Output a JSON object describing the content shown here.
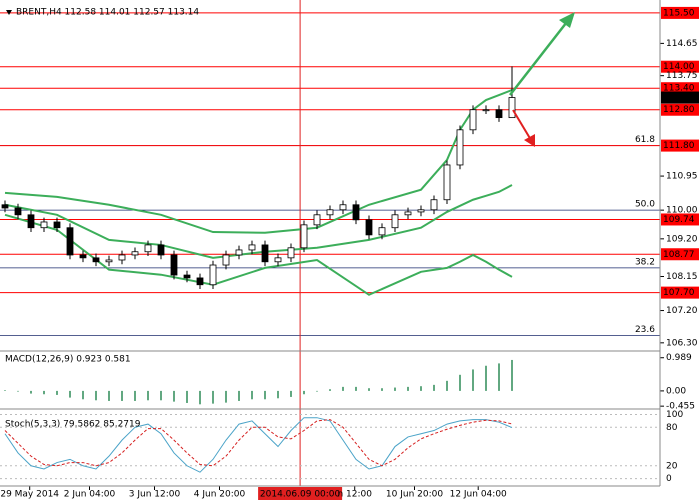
{
  "chart_data": [
    {
      "type": "candlestick",
      "title": "BRENT,H4  112.58 114.01 112.57 113.14",
      "open": [
        110.15,
        110.06,
        109.87,
        109.51,
        109.67,
        109.51,
        108.75,
        108.67,
        108.56,
        108.61,
        108.75,
        108.84,
        109.03,
        108.75,
        108.19,
        108.11,
        107.92,
        108.47,
        108.75,
        108.89,
        109.03,
        108.56,
        108.67,
        108.95,
        109.59,
        109.87,
        110.01,
        110.15,
        109.73,
        109.31,
        109.51,
        109.87,
        109.95,
        110.01,
        110.29,
        111.26,
        112.24,
        112.8,
        112.8,
        112.58
      ],
      "high": [
        110.27,
        110.18,
        109.99,
        109.79,
        109.79,
        109.63,
        108.87,
        108.79,
        108.73,
        108.87,
        108.96,
        109.15,
        109.15,
        108.87,
        108.31,
        108.23,
        108.59,
        108.87,
        109.01,
        109.15,
        109.15,
        108.79,
        109.07,
        109.71,
        109.99,
        110.13,
        110.27,
        110.27,
        109.85,
        109.63,
        109.99,
        110.07,
        110.13,
        110.41,
        111.38,
        112.36,
        112.92,
        112.92,
        112.92,
        114.01
      ],
      "low": [
        109.94,
        109.75,
        109.39,
        109.39,
        109.39,
        108.63,
        108.55,
        108.44,
        108.44,
        108.49,
        108.63,
        108.72,
        108.63,
        108.07,
        107.99,
        107.8,
        107.8,
        108.35,
        108.63,
        108.77,
        108.44,
        108.44,
        108.55,
        108.83,
        109.47,
        109.75,
        109.89,
        109.61,
        109.19,
        109.19,
        109.39,
        109.75,
        109.83,
        109.89,
        110.17,
        111.14,
        112.12,
        112.68,
        112.46,
        112.57
      ],
      "close": [
        110.06,
        109.87,
        109.51,
        109.67,
        109.51,
        108.75,
        108.67,
        108.56,
        108.61,
        108.75,
        108.84,
        109.03,
        108.75,
        108.19,
        108.11,
        107.92,
        108.47,
        108.75,
        108.89,
        109.03,
        108.56,
        108.67,
        108.95,
        109.59,
        109.87,
        110.01,
        110.15,
        109.73,
        109.31,
        109.51,
        109.87,
        109.95,
        110.01,
        110.29,
        111.26,
        112.24,
        112.8,
        112.8,
        112.58,
        113.14
      ],
      "bands": {
        "color": "#3cae5a",
        "x": [
          0,
          4,
          8,
          12,
          16,
          20,
          24,
          28,
          32,
          34,
          35,
          36,
          37,
          38,
          39
        ],
        "series": [
          {
            "values": [
              110.48,
              110.37,
              110.15,
              109.87,
              109.39,
              109.37,
              109.51,
              110.15,
              110.57,
              111.4,
              112.24,
              112.8,
              113.07,
              113.21,
              113.35
            ]
          },
          {
            "values": [
              110.15,
              109.87,
              109.17,
              109.03,
              108.67,
              108.84,
              108.95,
              109.17,
              109.51,
              109.95,
              110.12,
              110.29,
              110.4,
              110.51,
              110.7
            ]
          },
          {
            "values": [
              109.87,
              109.45,
              108.34,
              108.2,
              107.92,
              108.39,
              108.61,
              107.64,
              108.28,
              108.39,
              108.56,
              108.75,
              108.56,
              108.34,
              108.14
            ]
          }
        ]
      },
      "ylim": [
        106.1,
        115.86
      ],
      "yticks": [
        {
          "value": 114.65,
          "label": "114.65"
        },
        {
          "value": 113.75,
          "label": "113.75"
        },
        {
          "value": 110.95,
          "label": "110.95"
        },
        {
          "value": 110,
          "label": "110.00"
        },
        {
          "value": 109.2,
          "label": "109.20"
        },
        {
          "value": 108.15,
          "label": "108.15"
        },
        {
          "value": 107.2,
          "label": "107.20"
        },
        {
          "value": 106.3,
          "label": "106.30"
        }
      ],
      "levels": {
        "color": "#ff0000",
        "ticks": [
          {
            "value": 115.5,
            "label": "115.50"
          },
          {
            "value": 114,
            "label": "114.00"
          },
          {
            "value": 113.4,
            "label": "113.40"
          },
          {
            "value": 112.8,
            "label": "112.80"
          },
          {
            "value": 111.8,
            "label": "111.80"
          },
          {
            "value": 109.74,
            "label": "109.74"
          },
          {
            "value": 108.77,
            "label": "108.77"
          },
          {
            "value": 107.7,
            "label": "107.70"
          }
        ]
      },
      "last": {
        "value": 113.14,
        "label": "113.14"
      },
      "fib": {
        "color": "#1a2a6c",
        "ticks": [
          {
            "value": 111.8,
            "label": "61.8"
          },
          {
            "value": 110,
            "label": "50.0"
          },
          {
            "value": 108.39,
            "label": "38.2"
          },
          {
            "value": 106.5,
            "label": "23.6"
          }
        ]
      },
      "xticks": [
        {
          "value": 1.9,
          "label": "29 May 2014"
        },
        {
          "value": 6.5,
          "label": "2 Jun 04:00"
        },
        {
          "value": 11.5,
          "label": "3 Jun 12:00"
        },
        {
          "value": 16.5,
          "label": "4 Jun 20:00"
        },
        {
          "value": 26.9,
          "label": "n 12:00"
        },
        {
          "value": 31.5,
          "label": "10 Jun 20:00"
        },
        {
          "value": 36.4,
          "label": "12 Jun 04:00"
        }
      ],
      "cursor": {
        "value": 22.7,
        "label": "2014.06.09 00:00"
      }
    },
    {
      "type": "bar",
      "title": "MACD(12,26,9) 0.923 0.581",
      "color": "#2e8b57",
      "values": [
        0.02,
        -0.02,
        -0.08,
        -0.1,
        -0.12,
        -0.2,
        -0.25,
        -0.28,
        -0.3,
        -0.3,
        -0.3,
        -0.28,
        -0.28,
        -0.32,
        -0.36,
        -0.4,
        -0.38,
        -0.35,
        -0.3,
        -0.25,
        -0.25,
        -0.22,
        -0.18,
        -0.1,
        -0.02,
        0.05,
        0.12,
        0.12,
        0.08,
        0.08,
        0.1,
        0.12,
        0.14,
        0.18,
        0.3,
        0.48,
        0.64,
        0.75,
        0.82,
        0.923
      ],
      "ylim": [
        -0.51,
        1.16
      ],
      "yticks": [
        0.989,
        {
          "value": 0,
          "label": "0.00"
        },
        -0.455
      ]
    },
    {
      "type": "line",
      "title": "Stoch(5,3,3) 79.5862 85.2719",
      "series": [
        {
          "color": "#4aa3c8",
          "values": [
            70,
            40,
            20,
            15,
            25,
            30,
            20,
            15,
            35,
            60,
            80,
            85,
            70,
            40,
            20,
            10,
            30,
            60,
            85,
            90,
            70,
            50,
            75,
            95,
            95,
            90,
            60,
            30,
            15,
            20,
            50,
            65,
            70,
            75,
            85,
            90,
            92,
            92,
            88,
            79.5862
          ]
        },
        {
          "color": "#d62020",
          "dashed": true,
          "values": [
            75,
            55,
            35,
            22,
            20,
            25,
            25,
            20,
            25,
            40,
            60,
            78,
            78,
            60,
            40,
            22,
            20,
            35,
            60,
            80,
            80,
            65,
            62,
            75,
            90,
            92,
            80,
            55,
            30,
            20,
            30,
            48,
            62,
            70,
            77,
            83,
            88,
            91,
            90,
            85.2719
          ]
        }
      ],
      "ylim": [
        -10,
        107
      ],
      "yticks": [
        100,
        80,
        20,
        0
      ]
    }
  ]
}
